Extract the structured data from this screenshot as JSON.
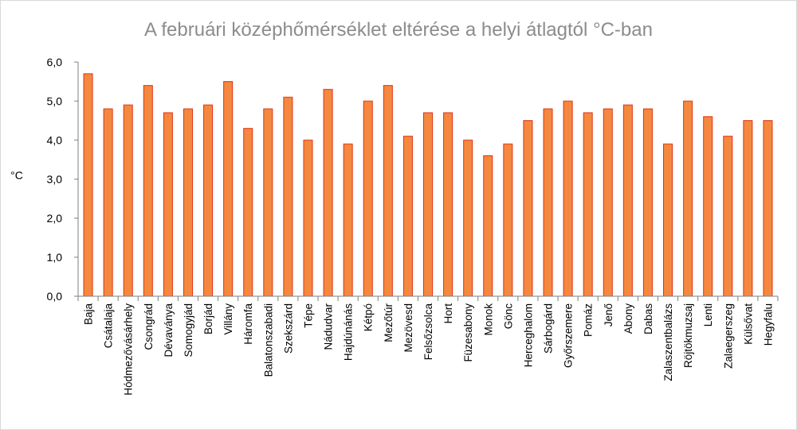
{
  "chart_data": {
    "type": "bar",
    "title": "A februári középhőmérséklet eltérése a helyi átlagtól  °C-ban",
    "xlabel": "",
    "ylabel": "°C",
    "ylim": [
      0,
      6
    ],
    "yticks": [
      0,
      1,
      2,
      3,
      4,
      5,
      6
    ],
    "ytick_labels": [
      "0,0",
      "1,0",
      "2,0",
      "3,0",
      "4,0",
      "5,0",
      "6,0"
    ],
    "grid": false,
    "legend": "none",
    "categories": [
      "Baja",
      "Csátalaja",
      "Hódmezővásárhely",
      "Csongrád",
      "Dévaványa",
      "Somogyjád",
      "Borjád",
      "Villány",
      "Háromfa",
      "Balatonszabadi",
      "Szekszárd",
      "Tépe",
      "Nádudvar",
      "Hajdúnánás",
      "Kétpó",
      "Mezőtúr",
      "Mezövesd",
      "Felsőzsolca",
      "Hort",
      "Füzesabony",
      "Monok",
      "Gönc",
      "Herceghalom",
      "Sárbogárd",
      "Győrszemere",
      "Pomáz",
      "Jenő",
      "Abony",
      "Dabas",
      "Zalaszentbalázs",
      "Röjtökmuzsaj",
      "Lenti",
      "Zalaegerszeg",
      "Külsővat",
      "Hegyfalu"
    ],
    "values": [
      5.7,
      4.8,
      4.9,
      5.4,
      4.7,
      4.8,
      4.9,
      5.5,
      4.3,
      4.8,
      5.1,
      4.0,
      5.3,
      3.9,
      5.0,
      5.4,
      4.1,
      4.7,
      4.7,
      4.0,
      3.6,
      3.9,
      4.5,
      4.8,
      5.0,
      4.7,
      4.8,
      4.9,
      4.8,
      3.9,
      5.0,
      4.6,
      4.1,
      4.5,
      4.5
    ],
    "colors": {
      "bar_fill": "#f58840",
      "bar_stroke": "#e0300e",
      "axis": "#7f7f7f"
    }
  }
}
